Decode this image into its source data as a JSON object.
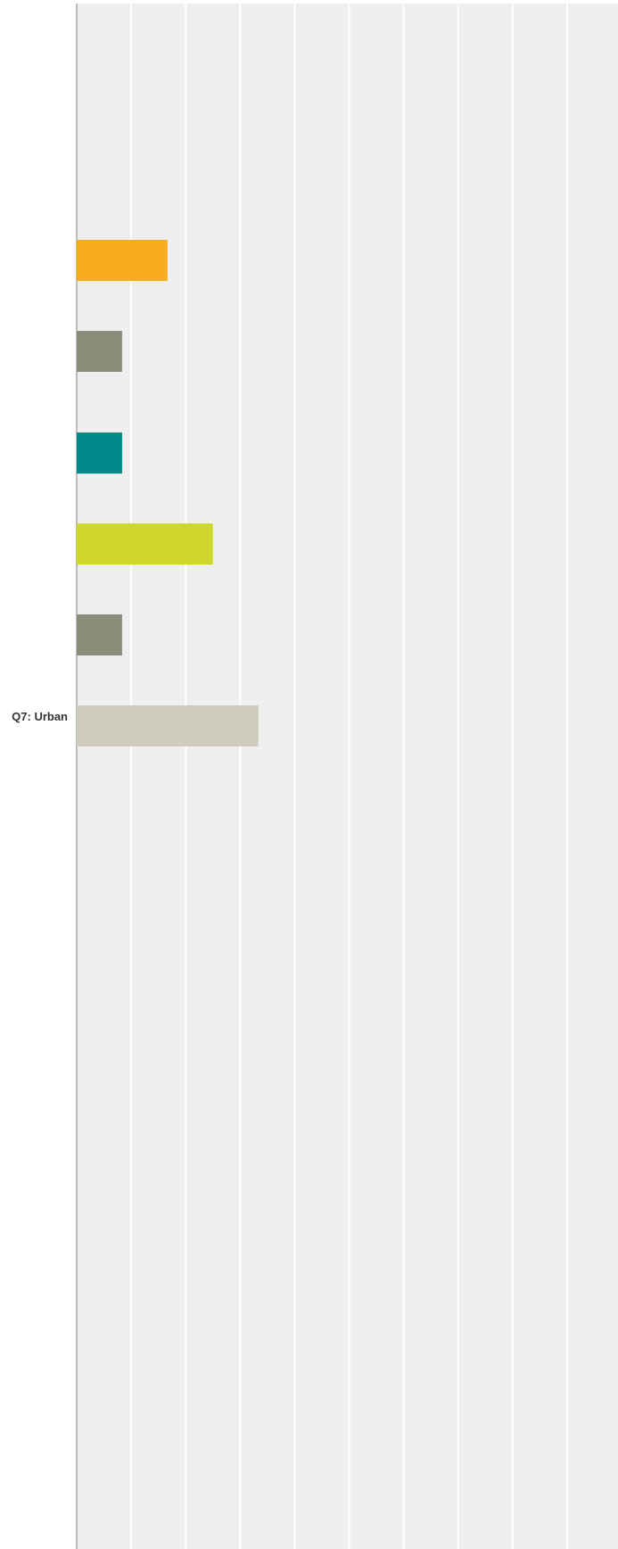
{
  "chart_data": {
    "type": "bar",
    "orientation": "horizontal",
    "category": "Q7: Urban",
    "grid": true,
    "xlim": [
      0,
      100
    ],
    "series": [
      {
        "color": "#f7ad1e",
        "value": 16.67
      },
      {
        "color": "#8b8c78",
        "value": 8.33
      },
      {
        "color": "#00898a",
        "value": 8.33
      },
      {
        "color": "#cfd62b",
        "value": 25.0
      },
      {
        "color": "#8b8c78",
        "value": 8.33
      },
      {
        "color": "#cfccbe",
        "value": 33.33
      }
    ]
  }
}
